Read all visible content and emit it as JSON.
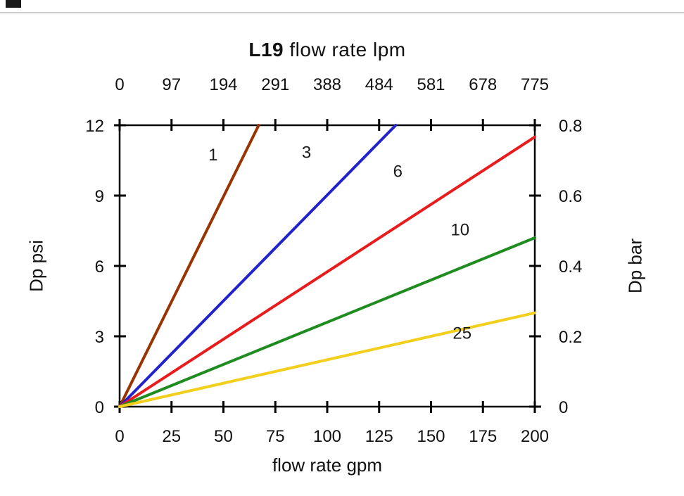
{
  "decor": {
    "top_rule_color": "#cccccc",
    "corner_mark_color": "#1a1a1a"
  },
  "chart_data": {
    "type": "line",
    "title": {
      "bold": "L19",
      "rest": " flow rate lpm"
    },
    "bottom_axis": {
      "label": "flow rate gpm",
      "ticks": [
        0,
        25,
        50,
        75,
        100,
        125,
        150,
        175,
        200
      ],
      "lim": [
        0,
        200
      ]
    },
    "top_axis": {
      "tick_labels": [
        "0",
        "97",
        "194",
        "291",
        "388",
        "484",
        "581",
        "678",
        "775"
      ]
    },
    "left_axis": {
      "label": "Dp psi",
      "ticks": [
        0,
        3,
        6,
        9,
        12
      ],
      "lim": [
        0,
        12
      ]
    },
    "right_axis": {
      "label": "Dp bar",
      "tick_labels": [
        "0",
        "0.2",
        "0.4",
        "0.6",
        "0.8"
      ]
    },
    "grid": false,
    "frame_color": "#000000",
    "series": [
      {
        "name": "1",
        "color": "#993300",
        "points": [
          [
            0,
            0
          ],
          [
            67,
            12
          ]
        ],
        "label_at": [
          45,
          10.5
        ]
      },
      {
        "name": "3",
        "color": "#2222cc",
        "points": [
          [
            0,
            0
          ],
          [
            133,
            12
          ]
        ],
        "label_at": [
          90,
          10.6
        ]
      },
      {
        "name": "6",
        "color": "#e81c1c",
        "points": [
          [
            0,
            0
          ],
          [
            200,
            11.5
          ]
        ],
        "label_at": [
          134,
          9.8
        ]
      },
      {
        "name": "10",
        "color": "#1f8c1f",
        "points": [
          [
            0,
            0
          ],
          [
            200,
            7.2
          ]
        ],
        "label_at": [
          164,
          7.3
        ]
      },
      {
        "name": "25",
        "color": "#f2cf1c",
        "points": [
          [
            0,
            0
          ],
          [
            200,
            4.0
          ]
        ],
        "label_at": [
          165,
          2.9
        ]
      }
    ]
  }
}
